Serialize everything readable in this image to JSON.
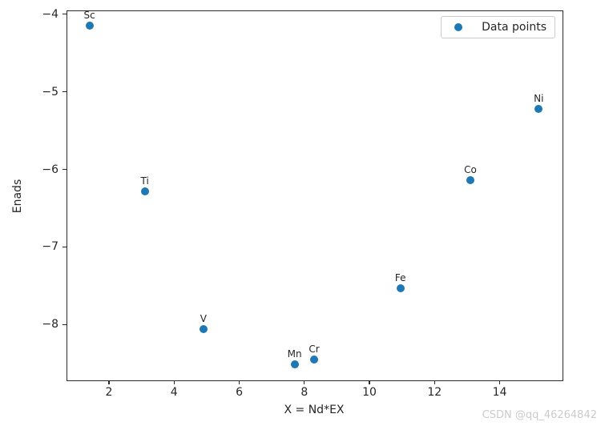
{
  "figure": {
    "background": "#ffffff"
  },
  "chart_data": {
    "type": "scatter",
    "title": "",
    "xlabel": "X = Nd*EX",
    "ylabel": "Enads",
    "xlim": [
      0.72,
      15.93
    ],
    "ylim": [
      -8.72,
      -3.96
    ],
    "grid": false,
    "legend": {
      "label": "Data points",
      "position": "upper right"
    },
    "marker_color": "#1f77b4",
    "axis_color": "#262626",
    "xticks": [
      {
        "value": 2,
        "label": "2"
      },
      {
        "value": 4,
        "label": "4"
      },
      {
        "value": 6,
        "label": "6"
      },
      {
        "value": 8,
        "label": "8"
      },
      {
        "value": 10,
        "label": "10"
      },
      {
        "value": 12,
        "label": "12"
      },
      {
        "value": 14,
        "label": "14"
      }
    ],
    "yticks": [
      {
        "value": -4,
        "label": "−4"
      },
      {
        "value": -5,
        "label": "−5"
      },
      {
        "value": -6,
        "label": "−6"
      },
      {
        "value": -7,
        "label": "−7"
      },
      {
        "value": -8,
        "label": "−8"
      }
    ],
    "points": [
      {
        "label": "Sc",
        "x": 1.4,
        "y": -4.15
      },
      {
        "label": "Ti",
        "x": 3.1,
        "y": -6.28
      },
      {
        "label": "V",
        "x": 4.9,
        "y": -8.06
      },
      {
        "label": "Mn",
        "x": 7.7,
        "y": -8.51
      },
      {
        "label": "Cr",
        "x": 8.3,
        "y": -8.45
      },
      {
        "label": "Fe",
        "x": 10.95,
        "y": -7.53
      },
      {
        "label": "Co",
        "x": 13.1,
        "y": -6.14
      },
      {
        "label": "Ni",
        "x": 15.2,
        "y": -5.22
      }
    ]
  },
  "watermark": {
    "text": "CSDN @qq_46264842",
    "color": "#cccccc"
  }
}
